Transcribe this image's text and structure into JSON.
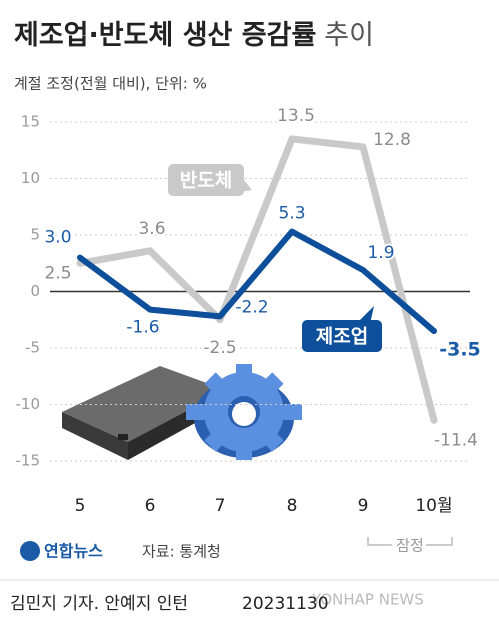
{
  "chart_data": {
    "type": "line",
    "title": "제조업·반도체 생산 증감률",
    "title_suffix": "추이",
    "subtitle": "계절 조정(전월 대비), 단위: %",
    "categories": [
      "5",
      "6",
      "7",
      "8",
      "9",
      "10월"
    ],
    "series": [
      {
        "name": "반도체",
        "color": "#c9c9c9",
        "label_color": "#8c8c8c",
        "values": [
          2.5,
          3.6,
          -2.5,
          13.5,
          12.8,
          -11.4
        ],
        "value_labels": [
          "2.5",
          "3.6",
          "-2.5",
          "13.5",
          "12.8",
          "-11.4"
        ]
      },
      {
        "name": "제조업",
        "color": "#0d4f9a",
        "label_color": "#1a5aa6",
        "values": [
          3.0,
          -1.6,
          -2.2,
          5.3,
          1.9,
          -3.5
        ],
        "value_labels": [
          "3.0",
          "-1.6",
          "-2.2",
          "5.3",
          "1.9",
          "-3.5"
        ]
      }
    ],
    "ylim": [
      -15,
      15
    ],
    "yticks": [
      15,
      10,
      5,
      0,
      -5,
      -10,
      -15
    ],
    "grid": true,
    "annotation": "잠정"
  },
  "footer": {
    "logo": "연합뉴스",
    "source": "자료: 통계청",
    "credit": "김민지 기자. 안예지 인턴",
    "date": "20231130",
    "watermark": "YONHAP NEWS"
  }
}
